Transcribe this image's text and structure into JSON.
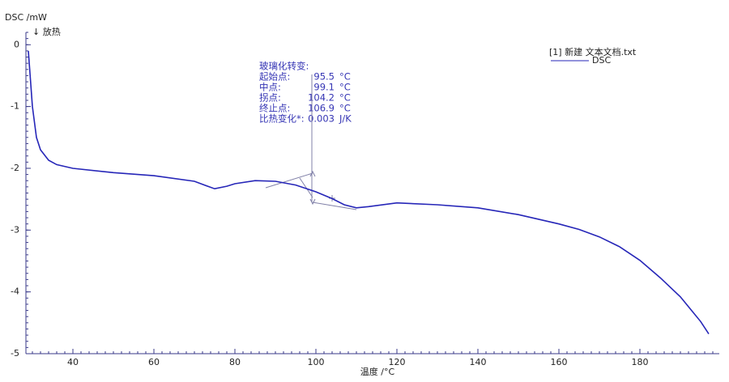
{
  "chart_data": {
    "type": "line",
    "y_label": "DSC /mW",
    "exo_label": "↓ 放热",
    "x_label": "温度 /°C",
    "legend_file": "[1]  新建 文本文档.txt",
    "x": [
      29,
      30,
      31,
      32,
      34,
      36,
      40,
      50,
      60,
      70,
      72,
      75,
      78,
      80,
      85,
      90,
      95,
      100,
      104,
      107,
      110,
      113,
      120,
      130,
      140,
      150,
      160,
      165,
      170,
      175,
      180,
      185,
      190,
      195,
      197
    ],
    "series": [
      {
        "name": "DSC",
        "color": "#2626b8",
        "values": [
          -0.1,
          -1.0,
          -1.5,
          -1.7,
          -1.87,
          -1.94,
          -2.0,
          -2.07,
          -2.12,
          -2.21,
          -2.26,
          -2.33,
          -2.29,
          -2.25,
          -2.2,
          -2.21,
          -2.27,
          -2.38,
          -2.49,
          -2.59,
          -2.64,
          -2.62,
          -2.56,
          -2.59,
          -2.64,
          -2.75,
          -2.9,
          -2.99,
          -3.11,
          -3.27,
          -3.49,
          -3.77,
          -4.08,
          -4.48,
          -4.68
        ]
      }
    ],
    "xlim": [
      28.4,
      199.6
    ],
    "ylim": [
      -5,
      0.2
    ],
    "xticks": [
      40,
      60,
      80,
      100,
      120,
      140,
      160,
      180
    ],
    "yticks": [
      0,
      -1,
      -2,
      -3,
      -4,
      -5
    ],
    "annotation": {
      "title": "玻璃化转变:",
      "rows": [
        {
          "label": "起始点:",
          "value": "95.5",
          "unit": "°C"
        },
        {
          "label": "中点:",
          "value": "99.1",
          "unit": "°C"
        },
        {
          "label": "拐点:",
          "value": "104.2",
          "unit": "°C"
        },
        {
          "label": "终止点:",
          "value": "106.9",
          "unit": "°C"
        },
        {
          "label": "比热变化*:",
          "value": "0.003",
          "unit": "J/K"
        }
      ]
    }
  }
}
